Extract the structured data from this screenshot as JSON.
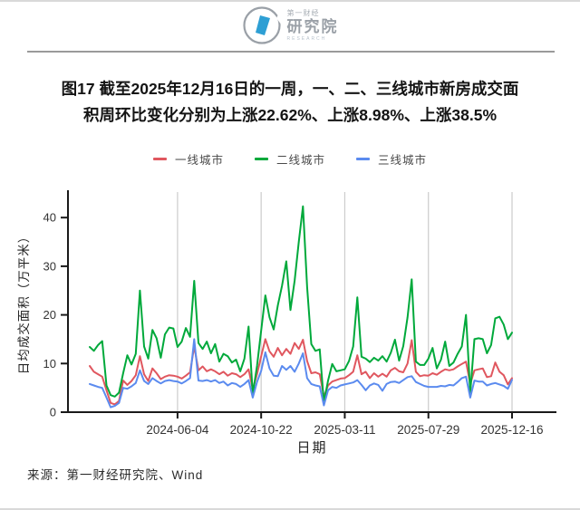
{
  "logo": {
    "brand_small": "第一财经",
    "brand_big": "研究院",
    "brand_caption": "RESEARCH"
  },
  "title_lines": [
    "图17 截至2025年12月16日的一周，一、二、三线城市新房成交面",
    "积周环比变化分别为上涨22.62%、上涨8.98%、上涨38.5%"
  ],
  "source_text": "来源：第一财经研究院、Wind",
  "colors": {
    "tier1_red": "#e0575f",
    "tier2_green": "#00a93b",
    "tier3_blue": "#5b8bef",
    "gridline": "#cccccc",
    "axis": "#1a1a1a"
  },
  "chart_data": {
    "type": "line",
    "title": "图17 截至2025年12月16日的一周，一、二、三线城市新房成交面积周环比变化分别为上涨22.62%、上涨8.98%、上涨38.5%",
    "xlabel": "日期",
    "ylabel": "日均成交面积（万平米）",
    "ylim": [
      0,
      45
    ],
    "yticks": [
      0,
      10,
      20,
      30,
      40
    ],
    "grid": "vertical-only",
    "legend_position": "top-center",
    "x_unit": "week-index (weekly data, 0 = ~2024-01-09, 101 = 2025-12-16)",
    "x_range_weeks": [
      0,
      101
    ],
    "xticks": [
      {
        "label": "2024-06-04",
        "week": 21
      },
      {
        "label": "2024-10-22",
        "week": 41
      },
      {
        "label": "2025-03-11",
        "week": 61
      },
      {
        "label": "2025-07-29",
        "week": 81
      },
      {
        "label": "2025-12-16",
        "week": 101
      }
    ],
    "wow_change_last_week": {
      "一线城市": "+22.62%",
      "二线城市": "+8.98%",
      "三线城市": "+38.5%"
    },
    "series": [
      {
        "name": "一线城市",
        "color": "#e0575f",
        "values": [
          9.5,
          8.3,
          7.8,
          7.3,
          4.5,
          1.9,
          1.6,
          2.3,
          6.5,
          5.6,
          6.4,
          7.6,
          11.5,
          7.8,
          6.4,
          9.0,
          8.0,
          6.8,
          7.3,
          7.6,
          7.5,
          7.3,
          6.9,
          7.5,
          8.2,
          13.5,
          8.6,
          9.4,
          8.4,
          8.8,
          8.4,
          7.8,
          8.3,
          7.5,
          8.0,
          7.8,
          7.2,
          7.8,
          8.8,
          4.7,
          7.8,
          11.5,
          15.0,
          12.5,
          11.4,
          13.2,
          11.7,
          13.0,
          12.0,
          14.2,
          13.0,
          14.9,
          10.5,
          8.0,
          8.2,
          7.8,
          3.2,
          5.5,
          6.3,
          6.6,
          6.9,
          7.0,
          7.6,
          8.3,
          11.7,
          7.8,
          8.3,
          7.0,
          8.0,
          7.3,
          7.9,
          7.3,
          8.6,
          9.1,
          8.4,
          8.2,
          10.0,
          14.8,
          8.3,
          7.4,
          7.6,
          7.5,
          8.0,
          7.7,
          8.3,
          8.8,
          8.6,
          8.8,
          9.4,
          9.9,
          10.4,
          5.8,
          8.6,
          8.8,
          9.0,
          7.2,
          7.4,
          10.2,
          8.3,
          7.6,
          5.71,
          7.0
        ]
      },
      {
        "name": "二线城市",
        "color": "#00a93b",
        "values": [
          13.4,
          12.6,
          13.8,
          14.6,
          5.5,
          3.5,
          3.2,
          4.0,
          8.0,
          11.7,
          9.8,
          12.0,
          25.0,
          13.5,
          11.0,
          16.9,
          15.2,
          11.2,
          16.0,
          17.4,
          17.2,
          13.4,
          14.5,
          17.3,
          15.5,
          27.0,
          14.2,
          13.0,
          14.5,
          12.1,
          14.0,
          10.4,
          12.0,
          11.5,
          10.2,
          10.8,
          8.4,
          11.0,
          17.6,
          3.7,
          9.5,
          16.8,
          24.0,
          19.5,
          17.0,
          22.0,
          26.0,
          31.0,
          21.0,
          27.0,
          35.0,
          42.3,
          25.7,
          14.0,
          12.6,
          12.9,
          2.0,
          6.5,
          9.9,
          8.4,
          8.6,
          8.8,
          10.5,
          13.5,
          23.6,
          11.4,
          11.0,
          10.3,
          11.2,
          10.6,
          11.5,
          10.4,
          12.2,
          14.9,
          10.6,
          13.6,
          19.5,
          27.3,
          10.4,
          9.7,
          9.7,
          11.0,
          13.2,
          9.0,
          10.8,
          14.5,
          9.5,
          10.2,
          12.0,
          13.5,
          20.0,
          4.0,
          15.0,
          15.2,
          15.0,
          12.1,
          13.8,
          19.3,
          19.6,
          18.0,
          15.0,
          16.35
        ]
      },
      {
        "name": "三线城市",
        "color": "#5b8bef",
        "values": [
          5.8,
          5.5,
          5.2,
          5.0,
          3.0,
          1.0,
          1.3,
          1.9,
          5.0,
          4.8,
          5.3,
          6.0,
          8.6,
          6.4,
          5.8,
          7.0,
          6.4,
          5.9,
          6.4,
          6.6,
          6.4,
          6.3,
          5.9,
          6.4,
          7.0,
          15.0,
          6.5,
          6.4,
          6.6,
          6.3,
          6.6,
          6.0,
          6.3,
          5.5,
          6.0,
          5.8,
          5.2,
          5.8,
          6.6,
          3.0,
          6.2,
          8.5,
          12.3,
          9.0,
          7.5,
          7.4,
          9.5,
          8.7,
          9.5,
          8.3,
          10.0,
          12.1,
          7.0,
          5.8,
          5.5,
          5.3,
          1.4,
          4.5,
          5.2,
          5.0,
          5.5,
          5.7,
          5.9,
          6.1,
          6.6,
          5.6,
          4.5,
          5.5,
          5.9,
          5.6,
          4.4,
          5.8,
          6.2,
          6.3,
          6.0,
          6.6,
          7.2,
          7.4,
          6.2,
          5.8,
          5.4,
          5.2,
          5.2,
          5.2,
          5.4,
          5.3,
          5.6,
          5.5,
          6.2,
          7.0,
          7.3,
          3.0,
          6.5,
          6.3,
          6.3,
          5.5,
          5.8,
          6.0,
          5.7,
          5.4,
          4.8,
          6.65
        ]
      }
    ]
  }
}
